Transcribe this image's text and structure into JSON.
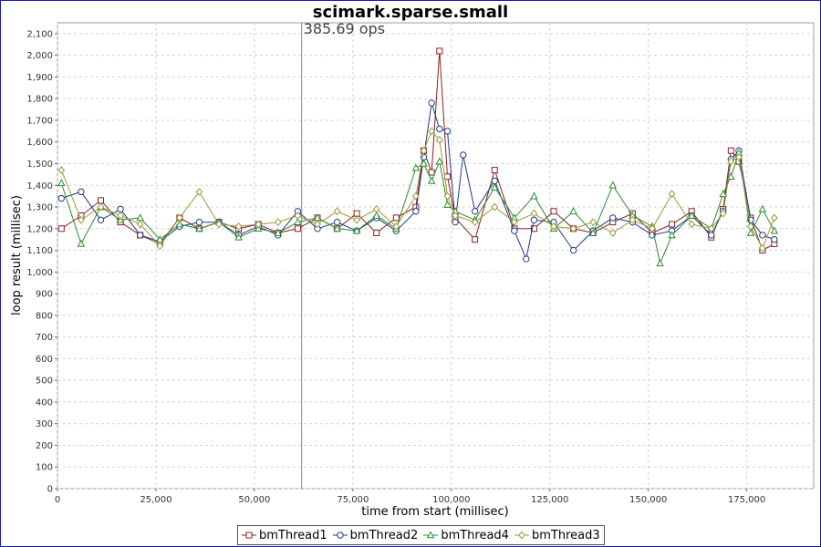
{
  "chart_data": {
    "type": "line",
    "title": "scimark.sparse.small",
    "xlabel": "time from start (millisec)",
    "ylabel": "loop result (millisec)",
    "xlim": [
      0,
      192000
    ],
    "ylim": [
      0,
      2150
    ],
    "x_ticks": [
      "0",
      "25,000",
      "50,000",
      "75,000",
      "100,000",
      "125,000",
      "150,000",
      "175,000"
    ],
    "y_ticks": [
      "0",
      "100",
      "200",
      "300",
      "400",
      "500",
      "600",
      "700",
      "800",
      "900",
      "1,000",
      "1,100",
      "1,200",
      "1,300",
      "1,400",
      "1,500",
      "1,600",
      "1,700",
      "1,800",
      "1,900",
      "2,000",
      "2,100"
    ],
    "grid": true,
    "legend_position": "bottom",
    "marker": {
      "x": 62000,
      "label": "385.69 ops"
    },
    "series": [
      {
        "name": "bmThread1",
        "color": "#8b2020",
        "symbol": "square",
        "x": [
          1000,
          6000,
          11000,
          16000,
          21000,
          26000,
          31000,
          36000,
          41000,
          46000,
          51000,
          56000,
          61000,
          66000,
          71000,
          76000,
          81000,
          86000,
          91000,
          93000,
          95000,
          97000,
          99000,
          101000,
          106000,
          111000,
          116000,
          121000,
          126000,
          131000,
          136000,
          141000,
          146000,
          151000,
          156000,
          161000,
          166000,
          169000,
          171000,
          173000,
          176000,
          179000,
          182000
        ],
        "values": [
          1200,
          1260,
          1330,
          1230,
          1170,
          1130,
          1250,
          1200,
          1230,
          1200,
          1220,
          1180,
          1200,
          1250,
          1200,
          1270,
          1180,
          1250,
          1300,
          1560,
          1460,
          2020,
          1440,
          1250,
          1150,
          1470,
          1200,
          1200,
          1280,
          1200,
          1180,
          1230,
          1270,
          1180,
          1220,
          1280,
          1160,
          1290,
          1560,
          1510,
          1250,
          1100,
          1130
        ]
      },
      {
        "name": "bmThread2",
        "color": "#1f3a8a",
        "symbol": "circle",
        "x": [
          1000,
          6000,
          11000,
          16000,
          21000,
          26000,
          31000,
          36000,
          41000,
          46000,
          51000,
          56000,
          61000,
          66000,
          71000,
          76000,
          81000,
          86000,
          91000,
          93000,
          95000,
          97000,
          99000,
          101000,
          103000,
          106000,
          111000,
          116000,
          119000,
          121000,
          126000,
          131000,
          136000,
          141000,
          146000,
          151000,
          156000,
          161000,
          166000,
          169000,
          171000,
          173000,
          176000,
          179000,
          182000
        ],
        "values": [
          1340,
          1370,
          1240,
          1290,
          1170,
          1140,
          1210,
          1230,
          1230,
          1170,
          1210,
          1170,
          1280,
          1200,
          1230,
          1190,
          1250,
          1190,
          1280,
          1530,
          1780,
          1660,
          1650,
          1230,
          1540,
          1280,
          1420,
          1190,
          1060,
          1240,
          1230,
          1100,
          1190,
          1250,
          1230,
          1170,
          1190,
          1260,
          1170,
          1280,
          1520,
          1560,
          1240,
          1170,
          1150
        ]
      },
      {
        "name": "bmThread4",
        "color": "#2e8b2e",
        "symbol": "triangle",
        "x": [
          1000,
          6000,
          11000,
          16000,
          21000,
          26000,
          31000,
          36000,
          41000,
          46000,
          51000,
          56000,
          61000,
          66000,
          71000,
          76000,
          81000,
          86000,
          91000,
          93000,
          95000,
          97000,
          99000,
          101000,
          106000,
          111000,
          116000,
          121000,
          126000,
          131000,
          136000,
          141000,
          146000,
          151000,
          153000,
          156000,
          161000,
          166000,
          169000,
          171000,
          173000,
          176000,
          179000,
          182000
        ],
        "values": [
          1410,
          1130,
          1300,
          1240,
          1250,
          1150,
          1220,
          1200,
          1230,
          1160,
          1200,
          1180,
          1230,
          1250,
          1200,
          1190,
          1260,
          1200,
          1480,
          1500,
          1420,
          1510,
          1310,
          1280,
          1240,
          1390,
          1250,
          1350,
          1200,
          1280,
          1180,
          1400,
          1260,
          1210,
          1040,
          1170,
          1260,
          1200,
          1360,
          1440,
          1550,
          1180,
          1290,
          1190
        ]
      },
      {
        "name": "bmThread3",
        "color": "#9a9a3a",
        "symbol": "diamond",
        "x": [
          1000,
          6000,
          11000,
          16000,
          21000,
          26000,
          31000,
          36000,
          41000,
          46000,
          51000,
          56000,
          61000,
          66000,
          71000,
          76000,
          81000,
          86000,
          91000,
          93000,
          95000,
          97000,
          99000,
          101000,
          106000,
          111000,
          116000,
          121000,
          126000,
          131000,
          136000,
          141000,
          146000,
          151000,
          156000,
          161000,
          166000,
          169000,
          171000,
          173000,
          176000,
          179000,
          182000
        ],
        "values": [
          1470,
          1240,
          1300,
          1260,
          1220,
          1120,
          1250,
          1370,
          1220,
          1210,
          1220,
          1230,
          1260,
          1220,
          1280,
          1240,
          1290,
          1210,
          1350,
          1560,
          1650,
          1610,
          1350,
          1260,
          1230,
          1300,
          1230,
          1270,
          1210,
          1200,
          1230,
          1180,
          1240,
          1200,
          1360,
          1220,
          1200,
          1270,
          1510,
          1530,
          1210,
          1110,
          1250
        ]
      }
    ]
  }
}
